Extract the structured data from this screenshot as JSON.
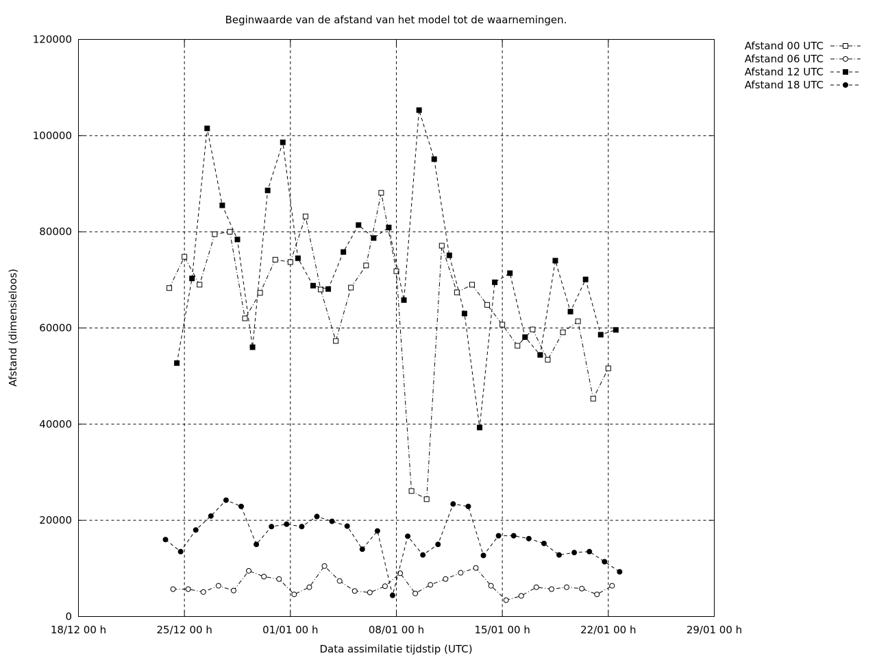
{
  "chart_data": {
    "type": "line",
    "title": "Beginwaarde van de afstand van het model tot de waarnemingen.",
    "xlabel": "Data assimilatie tijdstip (UTC)",
    "ylabel": "Afstand (dimensieloos)",
    "x_units": "days since 18/12 00 h",
    "xlim": [
      0,
      42
    ],
    "ylim": [
      0,
      120000
    ],
    "grid": true,
    "legend_position": "outside-top-right",
    "x_ticks": [
      {
        "value": 0,
        "label": "18/12 00 h"
      },
      {
        "value": 7,
        "label": "25/12 00 h"
      },
      {
        "value": 14,
        "label": "01/01 00 h"
      },
      {
        "value": 21,
        "label": "08/01 00 h"
      },
      {
        "value": 28,
        "label": "15/01 00 h"
      },
      {
        "value": 35,
        "label": "22/01 00 h"
      },
      {
        "value": 42,
        "label": "29/01 00 h"
      }
    ],
    "y_ticks": [
      {
        "value": 0,
        "label": "0"
      },
      {
        "value": 20000,
        "label": "20000"
      },
      {
        "value": 40000,
        "label": "40000"
      },
      {
        "value": 60000,
        "label": "60000"
      },
      {
        "value": 80000,
        "label": "80000"
      },
      {
        "value": 100000,
        "label": "100000"
      },
      {
        "value": 120000,
        "label": "120000"
      }
    ],
    "series": [
      {
        "name": "Afstand 00 UTC",
        "marker": "open-square",
        "line": "dash-dot",
        "x_start": 6.0,
        "x_step": 1,
        "values": [
          68300,
          74800,
          69000,
          79500,
          80000,
          62000,
          67300,
          74200,
          73700,
          83200,
          68000,
          57300,
          68400,
          73000,
          88100,
          71800,
          26100,
          24400,
          77100,
          67400,
          69000,
          64800,
          60700,
          56300,
          59700,
          53400,
          59100,
          61400,
          45300,
          51600
        ]
      },
      {
        "name": "Afstand 06 UTC",
        "marker": "open-circle",
        "line": "dash-dot",
        "x_start": 6.25,
        "x_step": 1,
        "values": [
          5700,
          5700,
          5100,
          6400,
          5400,
          9500,
          8300,
          7800,
          4600,
          6100,
          10500,
          7400,
          5300,
          5000,
          6300,
          9000,
          4800,
          6600,
          7800,
          9100,
          10100,
          6400,
          3400,
          4300,
          6100,
          5700,
          6100,
          5800,
          4600,
          6400
        ]
      },
      {
        "name": "Afstand 12 UTC",
        "marker": "filled-square",
        "line": "dashed",
        "x_start": 6.5,
        "x_step": 1,
        "values": [
          52700,
          70300,
          101500,
          85500,
          78400,
          56000,
          88600,
          98600,
          74500,
          68800,
          68100,
          75800,
          81400,
          78700,
          80900,
          65800,
          105300,
          95100,
          75100,
          63000,
          39300,
          69500,
          71400,
          58100,
          54400,
          74000,
          63400,
          70100,
          58600,
          59600
        ]
      },
      {
        "name": "Afstand 18 UTC",
        "marker": "filled-circle",
        "line": "dashed",
        "x_start": 5.75,
        "x_step": 1,
        "values": [
          16000,
          13500,
          18000,
          20900,
          24200,
          22900,
          15000,
          18700,
          19200,
          18700,
          20800,
          19800,
          18800,
          14000,
          17800,
          4400,
          16700,
          12800,
          15000,
          23400,
          22900,
          12700,
          16800,
          16800,
          16200,
          15200,
          12800,
          13300,
          13500,
          11400,
          9300
        ]
      }
    ]
  }
}
